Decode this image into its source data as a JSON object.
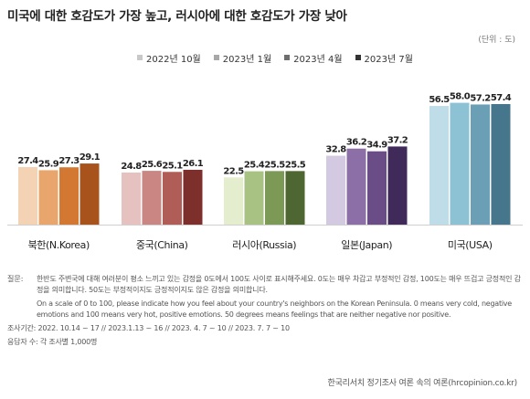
{
  "header": {
    "title": "미국에 대한 호감도가 가장 높고, 러시아에 대한 호감도가 가장 낮아",
    "unit": "(단위 : 도)"
  },
  "notes": {
    "question_label": "질문:",
    "question_ko": "한반도 주변국에 대해 여러분이 평소 느끼고 있는 감정을 0도에서 100도 사이로 표시해주세요. 0도는 매우 차갑고 부정적인 감정, 100도는 매우 뜨겁고 긍정적인 감정을 의미합니다. 50도는 부정적이지도 긍정적이지도 않은 감정을 의미합니다.",
    "question_en": "On a scale of 0 to 100, please indicate how you feel about your country's neighbors on the Korean Peninsula. 0 means very cold, negative emotions and 100 means very hot, positive emotions. 50 degrees means feelings that are neither negative nor positive.",
    "period": "조사기간: 2022. 10.14 ~ 17 // 2023.1.13 ~ 16 // 2023. 4. 7 ~ 10 // 2023. 7. 7 ~ 10",
    "sample": "응답자 수: 각 조사별 1,000명"
  },
  "source": "한국리서치 정기조사 여론 속의 여론(hrcopinion.co.kr)",
  "chart_data": {
    "type": "bar",
    "title": "미국에 대한 호감도가 가장 높고, 러시아에 대한 호감도가 가장 낮아",
    "unit": "(단위 : 도)",
    "legend_position": "top-center",
    "categories": [
      "북한(N.Korea)",
      "중국(China)",
      "러시아(Russia)",
      "일본(Japan)",
      "미국(USA)"
    ],
    "series": [
      {
        "name": "2022년 10월",
        "values": [
          27.4,
          24.8,
          22.5,
          32.8,
          56.5
        ]
      },
      {
        "name": "2023년 1월",
        "values": [
          25.9,
          25.6,
          25.4,
          36.2,
          58.0
        ]
      },
      {
        "name": "2023년 4월",
        "values": [
          27.3,
          25.1,
          25.5,
          34.9,
          57.2
        ]
      },
      {
        "name": "2023년 7월",
        "values": [
          29.1,
          26.1,
          25.5,
          37.2,
          57.4
        ]
      }
    ],
    "legend_colors": [
      "#c8c8c8",
      "#a8a8a8",
      "#6e6e6e",
      "#333333"
    ],
    "colors": [
      [
        "#f3d3b4",
        "#e8a66c",
        "#d37833",
        "#a8531c"
      ],
      [
        "#e5c1bf",
        "#c98682",
        "#b05d58",
        "#7d2f2c"
      ],
      [
        "#e5edcf",
        "#a8c283",
        "#7c9a56",
        "#4e6631"
      ],
      [
        "#d3c9e0",
        "#8c6fa6",
        "#6a4d86",
        "#3f2a59"
      ],
      [
        "#bfdde8",
        "#8dc1d4",
        "#6a9fb5",
        "#45768c"
      ]
    ],
    "ylim": [
      0,
      80
    ]
  }
}
